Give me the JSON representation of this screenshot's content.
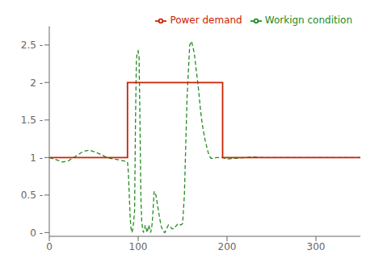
{
  "chart_data": {
    "type": "line",
    "xlim": [
      0,
      350
    ],
    "ylim": [
      -0.05,
      2.75
    ],
    "xticks": [
      0,
      100,
      200,
      300
    ],
    "yticks": [
      {
        "value": 0,
        "label": "0 -"
      },
      {
        "value": 0.5,
        "label": "0.5 -"
      },
      {
        "value": 1,
        "label": "1 -"
      },
      {
        "value": 1.5,
        "label": "1.5 -"
      },
      {
        "value": 2,
        "label": "2 -"
      },
      {
        "value": 2.5,
        "label": "2.5 -"
      }
    ],
    "grid": false,
    "legend": "upper right",
    "series": [
      {
        "name": "Workign condition",
        "color": "#228B22",
        "line_style": "dashed",
        "x": [
          0,
          8,
          15,
          22,
          30,
          38,
          45,
          52,
          58,
          65,
          72,
          78,
          82,
          86,
          88,
          89,
          90,
          91,
          92,
          93,
          94,
          95,
          96,
          97,
          98,
          99,
          100,
          101,
          102,
          103,
          104,
          105,
          106,
          107,
          108,
          109,
          110,
          111,
          112,
          113,
          114,
          115,
          116,
          117,
          118,
          120,
          122,
          124,
          126,
          128,
          130,
          132,
          134,
          136,
          138,
          140,
          142,
          145,
          148,
          150,
          152,
          155,
          158,
          160,
          163,
          165,
          168,
          170,
          172,
          175,
          178,
          180,
          182,
          185,
          188,
          190,
          192,
          195,
          197,
          200,
          210,
          220,
          230,
          240,
          260,
          280,
          300,
          320,
          340,
          350
        ],
        "values": [
          1.0,
          0.97,
          0.94,
          0.96,
          1.02,
          1.08,
          1.1,
          1.07,
          1.04,
          1.0,
          0.98,
          0.97,
          0.96,
          0.95,
          0.94,
          0.8,
          0.5,
          0.2,
          0.05,
          0.0,
          0.05,
          0.15,
          0.3,
          1.5,
          2.3,
          2.4,
          2.42,
          2.35,
          1.5,
          0.5,
          0.15,
          0.05,
          0.0,
          0.05,
          0.1,
          0.05,
          0.0,
          0.05,
          0.1,
          0.05,
          0.0,
          0.05,
          0.15,
          0.35,
          0.55,
          0.5,
          0.35,
          0.2,
          0.08,
          0.02,
          0.0,
          0.05,
          0.1,
          0.08,
          0.05,
          0.05,
          0.08,
          0.12,
          0.1,
          0.12,
          0.5,
          1.8,
          2.5,
          2.55,
          2.4,
          2.2,
          1.9,
          1.65,
          1.45,
          1.25,
          1.1,
          1.02,
          0.99,
          0.99,
          1.0,
          1.0,
          1.0,
          1.0,
          0.99,
          0.98,
          0.99,
          1.0,
          1.01,
          1.0,
          1.0,
          1.0,
          1.0,
          1.0,
          1.0,
          1.0
        ]
      },
      {
        "name": "Power demand",
        "color": "#CC2200",
        "line_style": "solid",
        "x": [
          0,
          88,
          88,
          195,
          195,
          350
        ],
        "values": [
          1.0,
          1.0,
          2.0,
          2.0,
          1.0,
          1.0
        ]
      }
    ]
  }
}
